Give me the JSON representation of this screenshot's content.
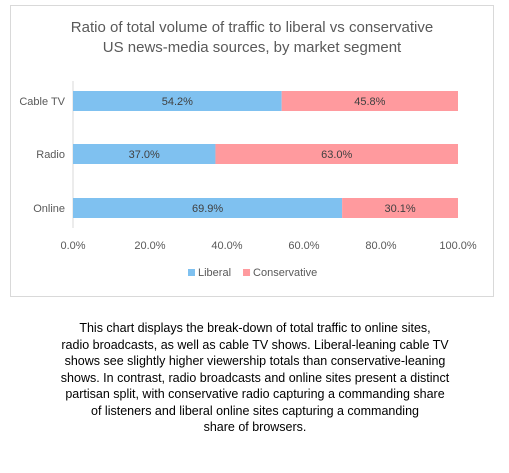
{
  "chart_data": {
    "type": "bar",
    "orientation": "horizontal",
    "stacked": true,
    "title_lines": [
      "Ratio of total volume of traffic to liberal vs conservative",
      "US news-media sources, by market segment"
    ],
    "categories": [
      "Cable TV",
      "Radio",
      "Online"
    ],
    "series": [
      {
        "name": "Liberal",
        "values": [
          54.2,
          37.0,
          69.9
        ],
        "labels": [
          "54.2%",
          "37.0%",
          "69.9%"
        ],
        "color": "#7fc1f0"
      },
      {
        "name": "Conservative",
        "values": [
          45.8,
          63.0,
          30.1
        ],
        "labels": [
          "45.8%",
          "63.0%",
          "30.1%"
        ],
        "color": "#ff9a9e"
      }
    ],
    "xlim": [
      0,
      100
    ],
    "x_ticks": [
      "0.0%",
      "20.0%",
      "40.0%",
      "60.0%",
      "80.0%",
      "100.0%"
    ],
    "xlabel": "",
    "ylabel": "",
    "grid": false,
    "legend": "bottom-center",
    "label_color": "#404040"
  },
  "caption": [
    "This chart displays the break-down of total traffic to online sites,",
    "radio broadcasts, as well as cable TV shows.  Liberal-leaning cable TV",
    "shows see slightly higher viewership totals than conservative-leaning",
    "shows.  In contrast, radio broadcasts and online sites present a distinct",
    "partisan split, with conservative radio capturing a commanding share",
    "of listeners and liberal online sites capturing a commanding",
    "share of browsers."
  ]
}
